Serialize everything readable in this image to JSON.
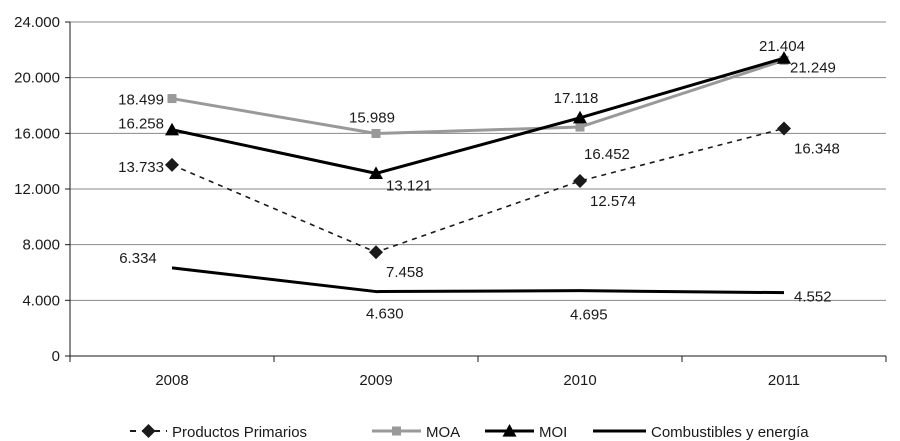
{
  "chart_data": {
    "type": "line",
    "title": "",
    "xlabel": "",
    "ylabel": "",
    "categories": [
      "2008",
      "2009",
      "2010",
      "2011"
    ],
    "ylim": [
      0,
      24000
    ],
    "yticks": [
      0,
      4000,
      8000,
      12000,
      16000,
      20000,
      24000
    ],
    "ytick_labels": [
      "0",
      "4.000",
      "8.000",
      "12.000",
      "16.000",
      "20.000",
      "24.000"
    ],
    "grid": "horizontal",
    "legend": "bottom",
    "series": [
      {
        "name": "Productos Primarios",
        "values": [
          13733,
          7458,
          12574,
          16348
        ],
        "labels": [
          "13.733",
          "7.458",
          "12.574",
          "16.348"
        ],
        "color": "#1a1a1a",
        "style": "dashed",
        "marker": "diamond"
      },
      {
        "name": "MOA",
        "values": [
          18499,
          15989,
          16452,
          21249
        ],
        "labels": [
          "18.499",
          "15.989",
          "16.452",
          "21.249"
        ],
        "color": "#999999",
        "style": "solid",
        "marker": "square"
      },
      {
        "name": "MOI",
        "values": [
          16258,
          13121,
          17118,
          21404
        ],
        "labels": [
          "16.258",
          "13.121",
          "17.118",
          "21.404"
        ],
        "color": "#000000",
        "style": "solid",
        "marker": "triangle"
      },
      {
        "name": "Combustibles y energía",
        "values": [
          6334,
          4630,
          4695,
          4552
        ],
        "labels": [
          "6.334",
          "4.630",
          "4.695",
          "4.552"
        ],
        "color": "#000000",
        "style": "solid",
        "marker": "none"
      }
    ]
  }
}
